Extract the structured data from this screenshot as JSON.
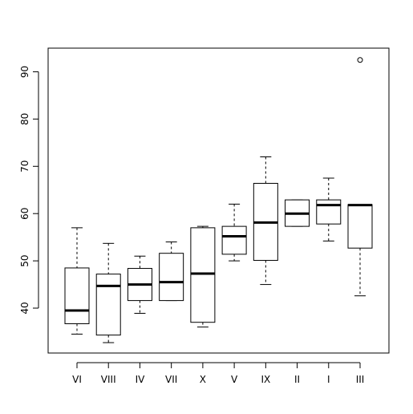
{
  "chart_data": {
    "type": "box",
    "title": "",
    "xlabel": "",
    "ylabel": "",
    "ylim": [
      30.5,
      95
    ],
    "yticks": [
      40,
      50,
      60,
      70,
      80,
      90
    ],
    "categories": [
      "VI",
      "VIII",
      "IV",
      "VII",
      "X",
      "V",
      "IX",
      "II",
      "I",
      "III"
    ],
    "boxes": [
      {
        "category": "VI",
        "min": 34.5,
        "q1": 36.7,
        "median": 39.5,
        "q3": 48.5,
        "max": 57.0,
        "outliers": []
      },
      {
        "category": "VIII",
        "min": 32.7,
        "q1": 34.3,
        "median": 44.7,
        "q3": 47.2,
        "max": 53.7,
        "outliers": []
      },
      {
        "category": "IV",
        "min": 38.9,
        "q1": 41.6,
        "median": 45.0,
        "q3": 48.4,
        "max": 51.0,
        "outliers": []
      },
      {
        "category": "VII",
        "min": 41.6,
        "q1": 41.6,
        "median": 45.5,
        "q3": 51.6,
        "max": 54.0,
        "outliers": []
      },
      {
        "category": "X",
        "min": 36.0,
        "q1": 37.0,
        "median": 47.3,
        "q3": 57.0,
        "max": 57.3,
        "outliers": []
      },
      {
        "category": "V",
        "min": 50.0,
        "q1": 51.4,
        "median": 55.2,
        "q3": 57.3,
        "max": 62.0,
        "outliers": []
      },
      {
        "category": "IX",
        "min": 45.0,
        "q1": 50.1,
        "median": 58.1,
        "q3": 66.4,
        "max": 72.0,
        "outliers": []
      },
      {
        "category": "II",
        "min": 57.3,
        "q1": 57.3,
        "median": 60.0,
        "q3": 62.9,
        "max": 62.9,
        "outliers": []
      },
      {
        "category": "I",
        "min": 54.2,
        "q1": 57.8,
        "median": 61.8,
        "q3": 62.9,
        "max": 67.5,
        "outliers": []
      },
      {
        "category": "III",
        "min": 42.6,
        "q1": 52.7,
        "median": 61.8,
        "q3": 61.9,
        "max": 61.9,
        "outliers": [
          92.5
        ]
      }
    ]
  }
}
